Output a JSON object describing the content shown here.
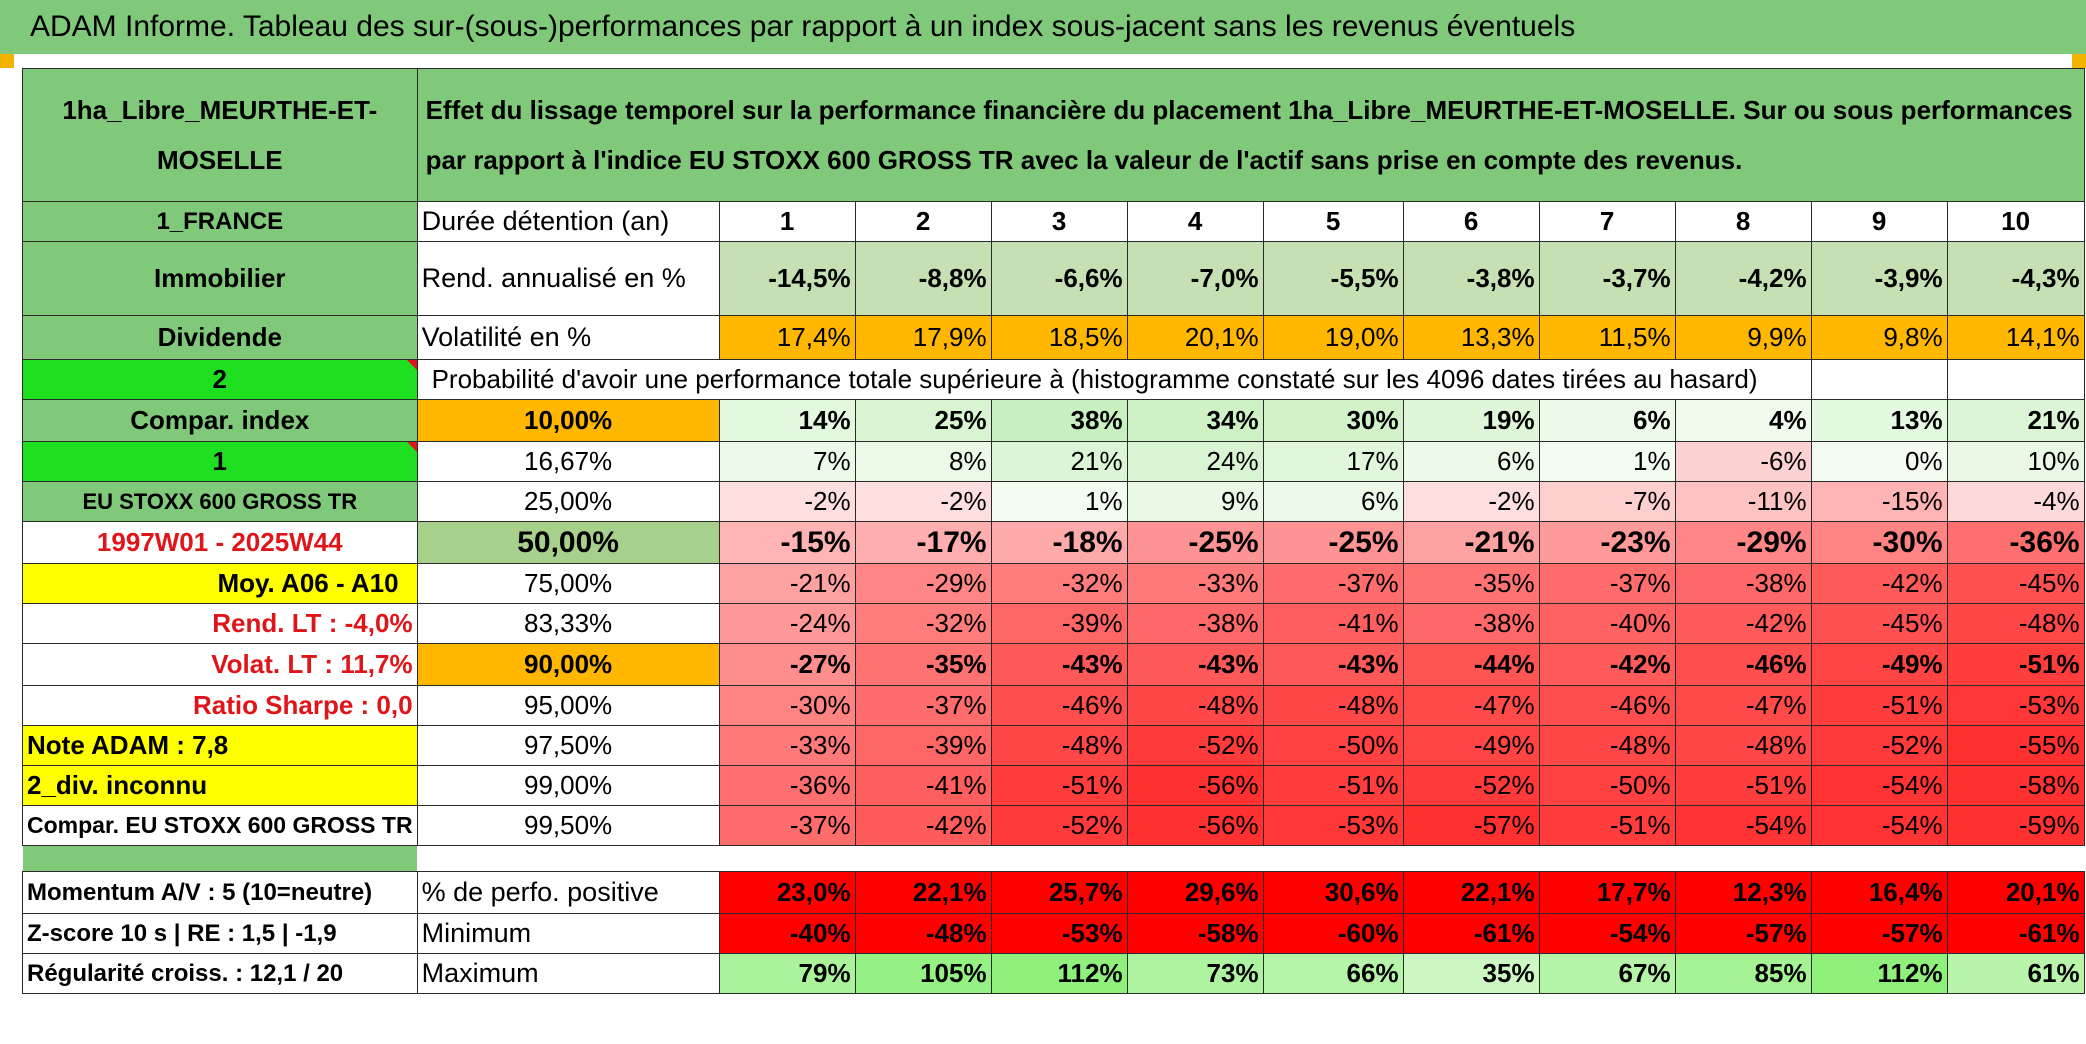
{
  "title": "ADAM Informe. Tableau des sur-(sous-)performances par rapport à un index sous-jacent sans les revenus éventuels",
  "asset_name": "1ha_Libre_MEURTHE-ET-MOSELLE",
  "description": "Effet du lissage temporel sur la performance financière du placement 1ha_Libre_MEURTHE-ET-MOSELLE. Sur ou sous performances par rapport à l'indice EU STOXX 600 GROSS TR avec la valeur de l'actif sans prise en compte des revenus.",
  "left": {
    "country": "1_FRANCE",
    "category": "Immobilier",
    "dividend": "Dividende",
    "code2": "2",
    "compar_index": "Compar. index",
    "code1": "1",
    "index_name": "EU STOXX 600 GROSS TR",
    "period": "1997W01 - 2025W44",
    "moy": "Moy. A06 - A10",
    "rend_lt": "Rend. LT :   -4,0%",
    "volat_lt": "Volat. LT :   11,7%",
    "sharpe": "Ratio Sharpe :    0,0",
    "note": "Note ADAM : 7,8",
    "div_unknown": "2_div. inconnu",
    "compar_full": "Compar. EU STOXX 600 GROSS TR",
    "momentum": "Momentum A/V : 5 (10=neutre)",
    "zscore": "Z-score 10 s | RE : 1,5 | -1,9",
    "regularite": "Régularité croiss. : 12,1 / 20"
  },
  "header_row": {
    "label": "Durée détention (an)",
    "years": [
      "1",
      "2",
      "3",
      "4",
      "5",
      "6",
      "7",
      "8",
      "9",
      "10"
    ]
  },
  "rend": {
    "label": "Rend. annualisé en %",
    "values": [
      "-14,5%",
      "-8,8%",
      "-6,6%",
      "-7,0%",
      "-5,5%",
      "-3,8%",
      "-3,7%",
      "-4,2%",
      "-3,9%",
      "-4,3%"
    ]
  },
  "vol": {
    "label": "Volatilité en %",
    "values": [
      "17,4%",
      "17,9%",
      "18,5%",
      "20,1%",
      "19,0%",
      "13,3%",
      "11,5%",
      "9,9%",
      "9,8%",
      "14,1%"
    ]
  },
  "proba_title": "Probabilité d'avoir une performance totale supérieure à (histogramme constaté sur les 4096 dates tirées au hasard)",
  "prob_rows": [
    {
      "pct": "10,00%",
      "values": [
        "14%",
        "25%",
        "38%",
        "34%",
        "30%",
        "19%",
        "6%",
        "4%",
        "13%",
        "21%"
      ]
    },
    {
      "pct": "16,67%",
      "values": [
        "7%",
        "8%",
        "21%",
        "24%",
        "17%",
        "6%",
        "1%",
        "-6%",
        "0%",
        "10%"
      ]
    },
    {
      "pct": "25,00%",
      "values": [
        "-2%",
        "-2%",
        "1%",
        "9%",
        "6%",
        "-2%",
        "-7%",
        "-11%",
        "-15%",
        "-4%"
      ]
    },
    {
      "pct": "50,00%",
      "values": [
        "-15%",
        "-17%",
        "-18%",
        "-25%",
        "-25%",
        "-21%",
        "-23%",
        "-29%",
        "-30%",
        "-36%"
      ]
    },
    {
      "pct": "75,00%",
      "values": [
        "-21%",
        "-29%",
        "-32%",
        "-33%",
        "-37%",
        "-35%",
        "-37%",
        "-38%",
        "-42%",
        "-45%"
      ]
    },
    {
      "pct": "83,33%",
      "values": [
        "-24%",
        "-32%",
        "-39%",
        "-38%",
        "-41%",
        "-38%",
        "-40%",
        "-42%",
        "-45%",
        "-48%"
      ]
    },
    {
      "pct": "90,00%",
      "values": [
        "-27%",
        "-35%",
        "-43%",
        "-43%",
        "-43%",
        "-44%",
        "-42%",
        "-46%",
        "-49%",
        "-51%"
      ]
    },
    {
      "pct": "95,00%",
      "values": [
        "-30%",
        "-37%",
        "-46%",
        "-48%",
        "-48%",
        "-47%",
        "-46%",
        "-47%",
        "-51%",
        "-53%"
      ]
    },
    {
      "pct": "97,50%",
      "values": [
        "-33%",
        "-39%",
        "-48%",
        "-52%",
        "-50%",
        "-49%",
        "-48%",
        "-48%",
        "-52%",
        "-55%"
      ]
    },
    {
      "pct": "99,00%",
      "values": [
        "-36%",
        "-41%",
        "-51%",
        "-56%",
        "-51%",
        "-52%",
        "-50%",
        "-51%",
        "-54%",
        "-58%"
      ]
    },
    {
      "pct": "99,50%",
      "values": [
        "-37%",
        "-42%",
        "-52%",
        "-56%",
        "-53%",
        "-57%",
        "-51%",
        "-54%",
        "-54%",
        "-59%"
      ]
    }
  ],
  "bottom_rows": [
    {
      "label": "% de perfo. positive",
      "values": [
        "23,0%",
        "22,1%",
        "25,7%",
        "29,6%",
        "30,6%",
        "22,1%",
        "17,7%",
        "12,3%",
        "16,4%",
        "20,1%"
      ]
    },
    {
      "label": "Minimum",
      "values": [
        "-40%",
        "-48%",
        "-53%",
        "-58%",
        "-60%",
        "-61%",
        "-54%",
        "-57%",
        "-57%",
        "-61%"
      ]
    },
    {
      "label": "Maximum",
      "values": [
        "79%",
        "105%",
        "112%",
        "73%",
        "66%",
        "35%",
        "67%",
        "85%",
        "112%",
        "61%"
      ]
    }
  ],
  "colors": {
    "title_green": "#80c97a",
    "bright_green": "#1ee021",
    "yellow": "#ffff00",
    "orange": "#ffb700",
    "red_text": "#e0151a",
    "rend_bg": "#c6e0b4",
    "strong_red": "#ff0000"
  }
}
